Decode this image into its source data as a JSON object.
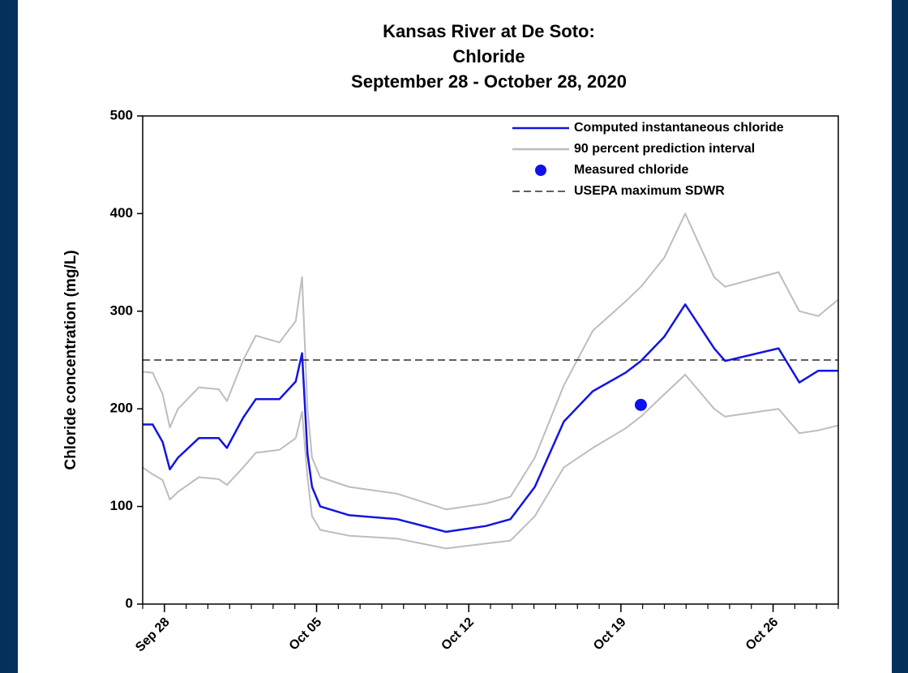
{
  "chart_data": {
    "type": "line",
    "title": [
      "Kansas River at De Soto:",
      "Chloride",
      "September 28 - October 28, 2020"
    ],
    "ylabel": "Chloride concentration (mg/L)",
    "x": [
      "2020-09-27T00:00",
      "2020-09-27T11:00",
      "2020-09-27T22:00",
      "2020-09-28T06:00",
      "2020-09-28T15:00",
      "2020-09-29T14:00",
      "2020-09-30T12:00",
      "2020-09-30T21:00",
      "2020-10-01T15:00",
      "2020-10-02T05:00",
      "2020-10-03T07:00",
      "2020-10-04T01:00",
      "2020-10-04T08:00",
      "2020-10-04T14:00",
      "2020-10-04T19:00",
      "2020-10-05T04:00",
      "2020-10-06T12:00",
      "2020-10-08T17:00",
      "2020-10-10T23:00",
      "2020-10-12T19:00",
      "2020-10-13T22:00",
      "2020-10-15T01:00",
      "2020-10-16T09:00",
      "2020-10-17T17:00",
      "2020-10-19T05:00",
      "2020-10-19T22:00",
      "2020-10-21T00:00",
      "2020-10-21T23:00",
      "2020-10-23T07:00",
      "2020-10-23T19:00",
      "2020-10-26T06:00",
      "2020-10-27T05:00",
      "2020-10-28T02:00",
      "2020-10-29T00:00"
    ],
    "series": [
      {
        "name": "Computed instantaneous chloride",
        "color": "#1414e0",
        "values": [
          184,
          184,
          166,
          138,
          150,
          170,
          170,
          160,
          191,
          210,
          210,
          228,
          257,
          154,
          120,
          100,
          91,
          87,
          74,
          80,
          87,
          120,
          187,
          218,
          237,
          249,
          274,
          307,
          262,
          249,
          262,
          227,
          239,
          239
        ]
      },
      {
        "name": "90 percent prediction interval",
        "color": "#bdbdbd",
        "upper": [
          238,
          237,
          215,
          181,
          200,
          222,
          220,
          208,
          250,
          275,
          268,
          290,
          335,
          200,
          150,
          130,
          120,
          113,
          97,
          103,
          110,
          150,
          224,
          280,
          310,
          325,
          355,
          400,
          335,
          325,
          340,
          300,
          295,
          312
        ],
        "lower": [
          140,
          133,
          127,
          107,
          115,
          130,
          128,
          122,
          140,
          155,
          158,
          170,
          197,
          130,
          90,
          76,
          70,
          67,
          57,
          62,
          65,
          90,
          140,
          160,
          180,
          192,
          215,
          235,
          200,
          192,
          200,
          175,
          178,
          183
        ]
      },
      {
        "name": "Measured chloride",
        "color": "#1010ee",
        "style": "marker",
        "x": [
          "2020-10-19T22:00"
        ],
        "values": [
          204
        ]
      },
      {
        "name": "USEPA maximum SDWR",
        "color": "#000000",
        "style": "dashed",
        "value": 250
      }
    ],
    "xlim": [
      "2020-09-27T00:00",
      "2020-10-29T00:00"
    ],
    "xticks": [
      {
        "value": "2020-09-28T00:00",
        "label": "Sep 28"
      },
      {
        "value": "2020-10-05T00:00",
        "label": "Oct 05"
      },
      {
        "value": "2020-10-12T00:00",
        "label": "Oct 12"
      },
      {
        "value": "2020-10-19T00:00",
        "label": "Oct 19"
      },
      {
        "value": "2020-10-26T00:00",
        "label": "Oct 26"
      }
    ],
    "ylim": [
      0,
      500
    ],
    "yticks": [
      0,
      100,
      200,
      300,
      400,
      500
    ],
    "legend": "upper-right",
    "grid": false
  }
}
